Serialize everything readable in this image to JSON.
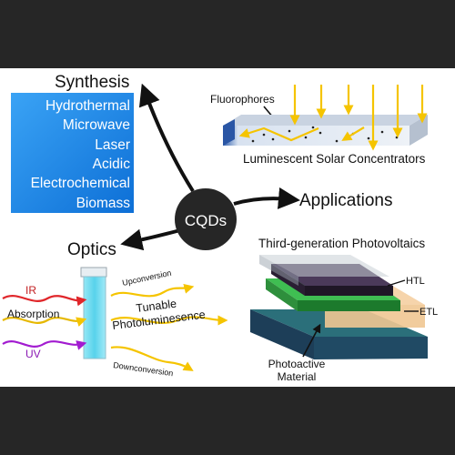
{
  "center": {
    "label": "CQDs"
  },
  "synthesis": {
    "title": "Synthesis",
    "methods": [
      "Hydrothermal",
      "Microwave",
      "Laser",
      "Acidic",
      "Electrochemical",
      "Biomass"
    ]
  },
  "applications": {
    "title": "Applications",
    "lsc": {
      "fluorophores_label": "Fluorophores",
      "caption": "Luminescent Solar Concentrators"
    },
    "pv": {
      "title": "Third-generation Photovoltaics",
      "htl": "HTL",
      "etl": "ETL",
      "active_line1": "Photoactive",
      "active_line2": "Material"
    }
  },
  "optics": {
    "title": "Optics",
    "inputs": {
      "ir": "IR",
      "absorption": "Absorption",
      "uv": "UV"
    },
    "outputs": {
      "upconversion": "Upconversion",
      "tunable_line1": "Tunable",
      "tunable_line2": "Photoluminesence",
      "downconversion": "Downconversion"
    }
  },
  "colors": {
    "frame": "#262626",
    "panel": "#ffffff",
    "synthesis_box": "#1a86e6",
    "sun_arrow": "#f5c400",
    "ir": "#e0262a",
    "uv": "#a21bd0",
    "cuvette": "#5fd8ee"
  }
}
